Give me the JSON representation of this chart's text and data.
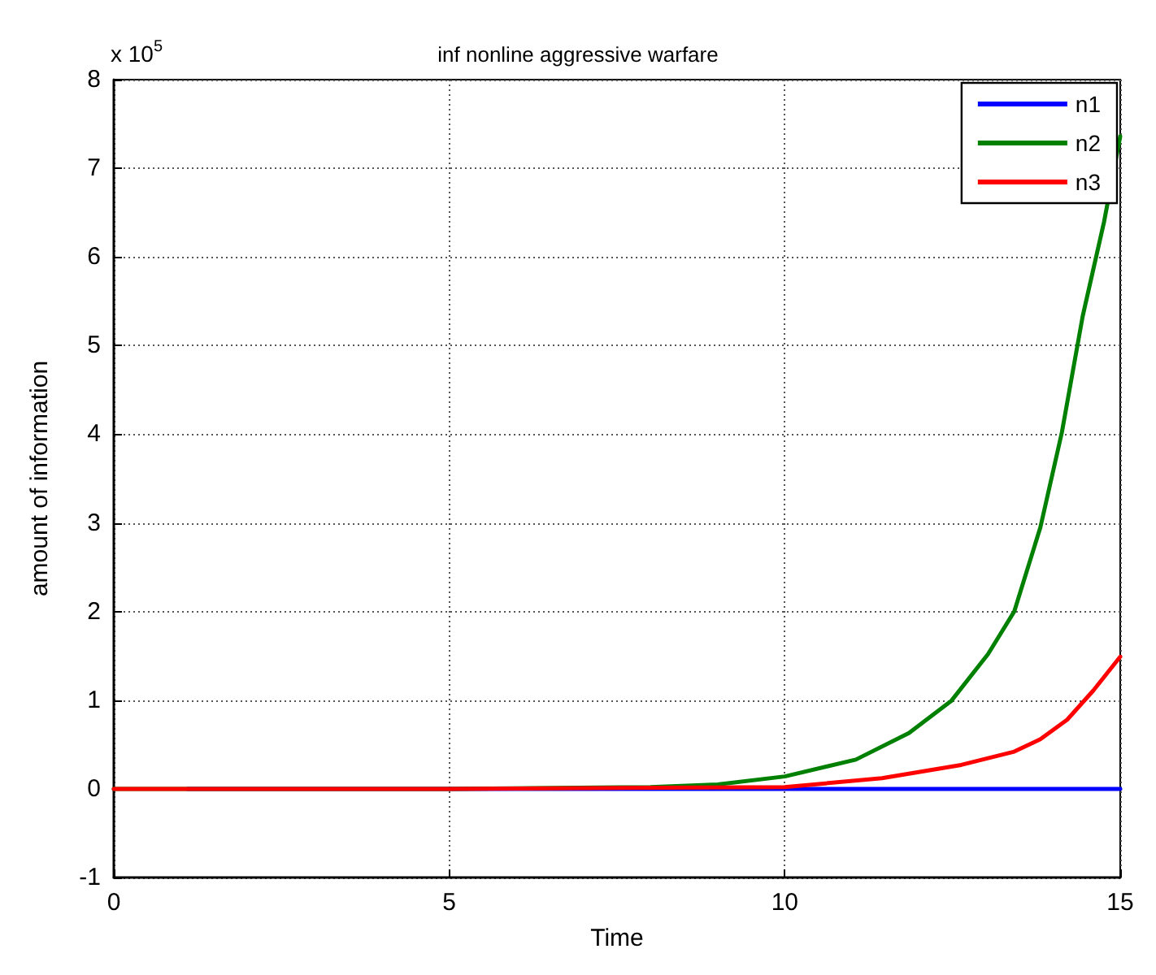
{
  "chart_data": {
    "type": "line",
    "title": "inf nonline aggressive warfare",
    "xlabel": "Time",
    "ylabel": "amount of information",
    "annotations": [
      "x 10$^{5}$"
    ],
    "series": [
      {
        "name": "n1",
        "color": "#0000ff",
        "x": [
          1.1,
          5,
          10,
          15
        ],
        "values": [
          0,
          0,
          0,
          0
        ]
      },
      {
        "name": "n2",
        "color": "#008000",
        "x": [
          0,
          5,
          8,
          9,
          10,
          11.06,
          11.85,
          12.48,
          13.03,
          13.42,
          13.81,
          14.13,
          14.44,
          14.76,
          15
        ],
        "values": [
          0,
          0,
          0.02,
          0.05,
          0.14,
          0.33,
          0.63,
          0.99,
          1.52,
          2.0,
          2.95,
          4.02,
          5.33,
          6.4,
          7.36
        ]
      },
      {
        "name": "n3",
        "color": "#ff0000",
        "x": [
          0,
          5,
          10,
          11.45,
          12.63,
          13.42,
          13.81,
          14.21,
          14.6,
          15
        ],
        "values": [
          0,
          0,
          0.02,
          0.12,
          0.27,
          0.42,
          0.56,
          0.78,
          1.11,
          1.49
        ]
      }
    ],
    "xlim": [
      0,
      15
    ],
    "xticks": [
      0,
      5,
      10,
      15
    ],
    "ylim": [
      -1,
      8
    ],
    "yticks": [
      -1,
      0,
      1,
      2,
      3,
      4,
      5,
      6,
      7,
      8
    ],
    "grid": true,
    "legend": "top right",
    "marker": "none",
    "line_style": "solid"
  }
}
